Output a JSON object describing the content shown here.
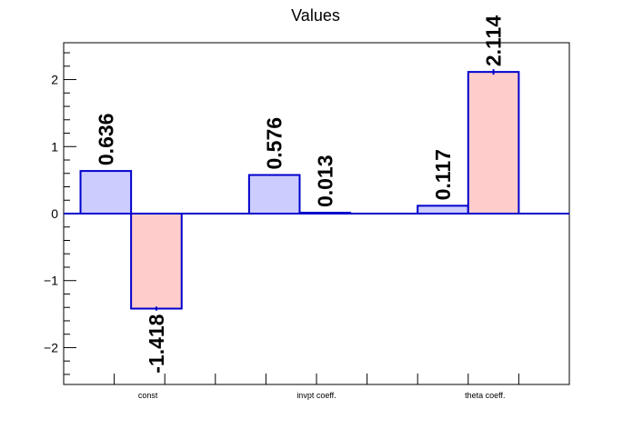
{
  "chart_data": {
    "type": "bar",
    "title": "Values",
    "xlabel": "",
    "ylabel": "",
    "categories": [
      "const",
      "invpt coeff.",
      "theta coeff."
    ],
    "ylim": [
      -2.55,
      2.55
    ],
    "yticks": [
      -2,
      -1,
      0,
      1,
      2
    ],
    "ytick_labels": [
      "−2",
      "−1",
      "0",
      "1",
      "2"
    ],
    "grid": false,
    "legend": "none",
    "series": [
      {
        "values": [
          0.636,
          0.576,
          0.117
        ],
        "labels": [
          "0.636",
          "0.576",
          "0.117"
        ],
        "errors": [
          0,
          0,
          0
        ],
        "fill": "#ccccff",
        "stroke": "#0000cc"
      },
      {
        "values": [
          -1.418,
          0.013,
          2.114
        ],
        "labels": [
          "-1.418",
          "0.013",
          "2.114"
        ],
        "errors": [
          0.03,
          0,
          0.04
        ],
        "fill": "#ffcccc",
        "stroke": "#0000cc"
      }
    ],
    "zero_line_color": "#0000cc"
  }
}
